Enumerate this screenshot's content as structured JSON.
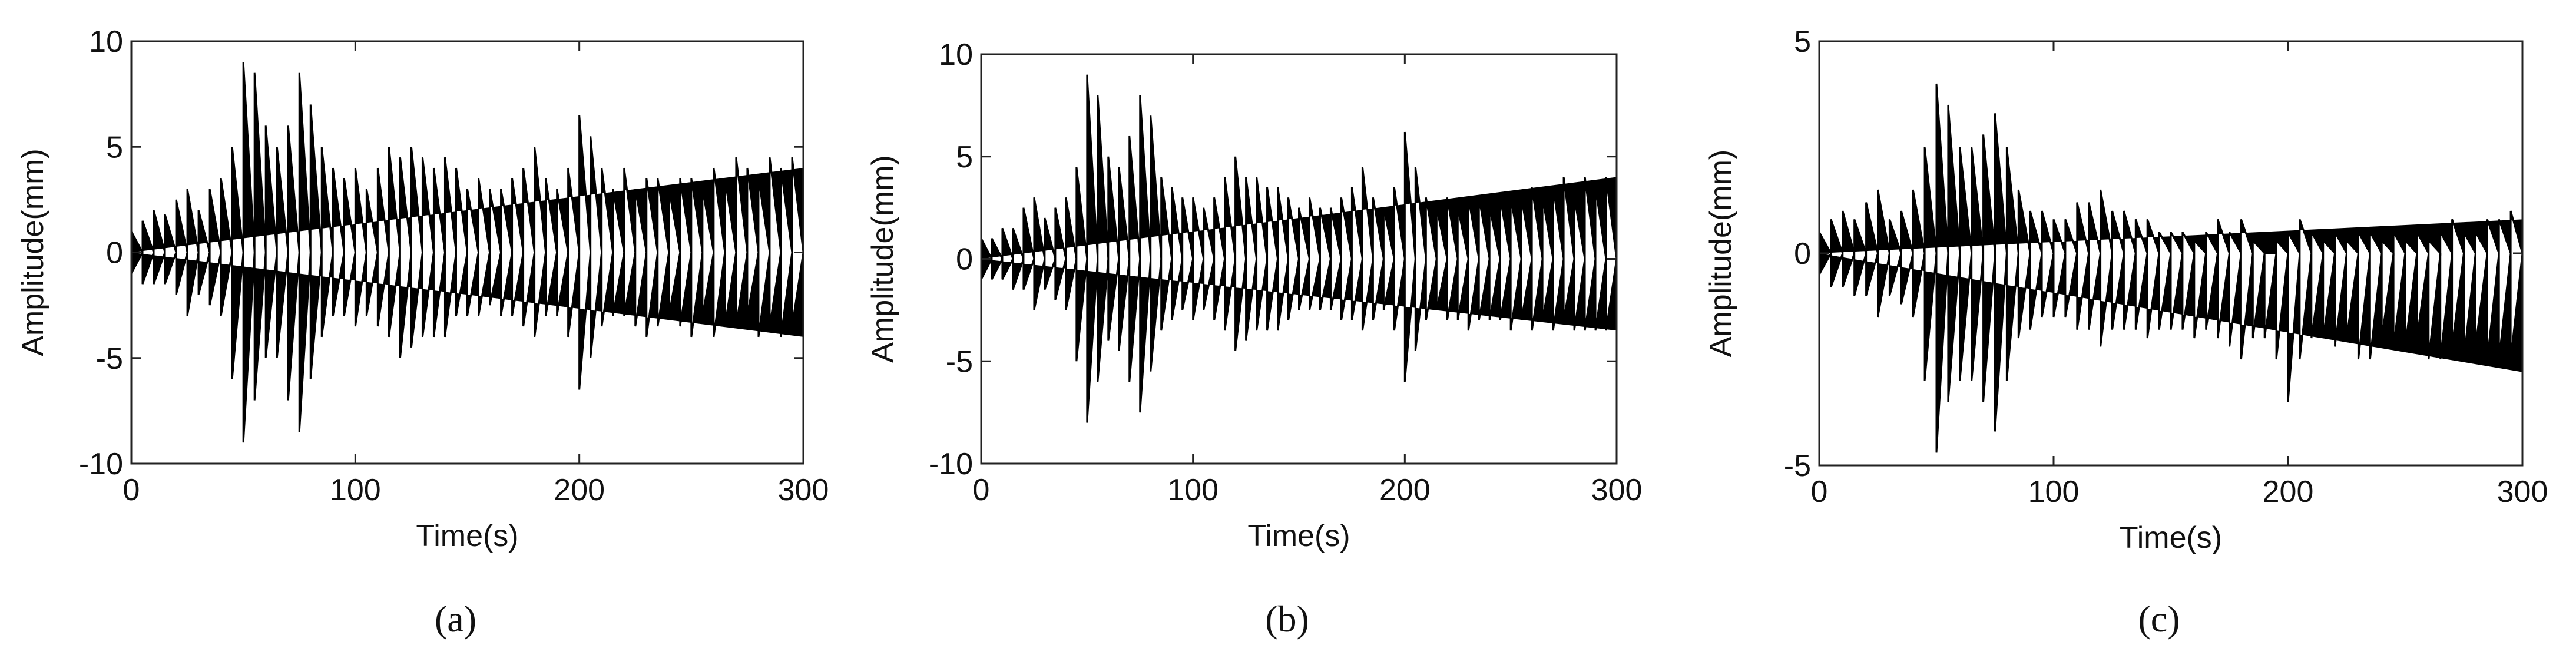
{
  "chart_data": [
    {
      "type": "area",
      "caption": "(a)",
      "xlabel": "Time(s)",
      "ylabel": "Amplitude(mm)",
      "x": [
        0,
        5,
        10,
        15,
        20,
        25,
        30,
        35,
        40,
        45,
        50,
        55,
        60,
        65,
        70,
        75,
        80,
        85,
        90,
        95,
        100,
        105,
        110,
        115,
        120,
        125,
        130,
        135,
        140,
        145,
        150,
        155,
        160,
        165,
        170,
        175,
        180,
        185,
        190,
        195,
        200,
        205,
        210,
        215,
        220,
        225,
        230,
        235,
        240,
        245,
        250,
        255,
        260,
        265,
        270,
        275,
        280,
        285,
        290,
        295,
        300
      ],
      "xlim": [
        0,
        300
      ],
      "xticks": [
        0,
        100,
        200,
        300
      ],
      "ylim": [
        -10,
        10
      ],
      "yticks": [
        -10,
        -5,
        0,
        5,
        10
      ],
      "series": [
        {
          "color": "#000000",
          "values": [
            1,
            1.5,
            2,
            1.8,
            2.5,
            3,
            2,
            3,
            3.5,
            5,
            9,
            8.5,
            6,
            5,
            6,
            8.5,
            7,
            5,
            4,
            3.5,
            4,
            3,
            4,
            5,
            4.5,
            5,
            4.5,
            4,
            4.5,
            4,
            3,
            3.5,
            3,
            3,
            3.5,
            4,
            5,
            3.5,
            3,
            4,
            6.5,
            5.5,
            4,
            3,
            4,
            3,
            3.5,
            3.5,
            3,
            3.5,
            3.5,
            3,
            4,
            3.5,
            4.5,
            4,
            3.5,
            4.5,
            4,
            4.5,
            4
          ]
        },
        {
          "color": "#000000",
          "values": [
            -1,
            -1.5,
            -1.5,
            -1.5,
            -2,
            -3,
            -2,
            -2.5,
            -3,
            -6,
            -9,
            -7,
            -5,
            -5,
            -7,
            -8.5,
            -6,
            -4,
            -3,
            -3,
            -3.5,
            -3,
            -3.5,
            -4,
            -5,
            -4.5,
            -4,
            -4,
            -4,
            -3,
            -3,
            -3,
            -2.5,
            -3,
            -3,
            -3.5,
            -4,
            -3,
            -3,
            -4,
            -6.5,
            -5,
            -3.5,
            -3,
            -3,
            -3.5,
            -4,
            -3.5,
            -3,
            -3.5,
            -4,
            -3,
            -4,
            -3.5,
            -3.5,
            -3,
            -4,
            -3.5,
            -4,
            -3.5,
            -4
          ]
        }
      ]
    },
    {
      "type": "area",
      "caption": "(b)",
      "xlabel": "Time(s)",
      "ylabel": "Amplitude(mm)",
      "x": [
        0,
        5,
        10,
        15,
        20,
        25,
        30,
        35,
        40,
        45,
        50,
        55,
        60,
        65,
        70,
        75,
        80,
        85,
        90,
        95,
        100,
        105,
        110,
        115,
        120,
        125,
        130,
        135,
        140,
        145,
        150,
        155,
        160,
        165,
        170,
        175,
        180,
        185,
        190,
        195,
        200,
        205,
        210,
        215,
        220,
        225,
        230,
        235,
        240,
        245,
        250,
        255,
        260,
        265,
        270,
        275,
        280,
        285,
        290,
        295,
        300
      ],
      "xlim": [
        0,
        300
      ],
      "xticks": [
        0,
        100,
        200,
        300
      ],
      "ylim": [
        -10,
        10
      ],
      "yticks": [
        -10,
        -5,
        0,
        5,
        10
      ],
      "series": [
        {
          "color": "#000000",
          "values": [
            1,
            1,
            1.5,
            1.5,
            2.5,
            3,
            2,
            2.5,
            3,
            4.5,
            9,
            8,
            5,
            4.5,
            6,
            8,
            7,
            4,
            3.5,
            3,
            3,
            2.5,
            3,
            4,
            5,
            4,
            4,
            3.5,
            3.5,
            3,
            2.5,
            3,
            2.5,
            2.5,
            3,
            3.5,
            4.5,
            3,
            2.5,
            3.5,
            6.2,
            4.5,
            3,
            2.5,
            3,
            2.5,
            3,
            3,
            2.5,
            3,
            3,
            3,
            3.5,
            3,
            3.5,
            4,
            3,
            4,
            3.5,
            4,
            4
          ]
        },
        {
          "color": "#000000",
          "values": [
            -1,
            -1,
            -1,
            -1.5,
            -1.5,
            -2.5,
            -1.5,
            -2,
            -2.5,
            -5,
            -8,
            -6,
            -4,
            -4.5,
            -6,
            -7.5,
            -5.5,
            -3.5,
            -3,
            -2.5,
            -3,
            -2.5,
            -3,
            -3.5,
            -4.5,
            -4,
            -3.5,
            -3.5,
            -3.5,
            -3,
            -2.5,
            -2.5,
            -2.5,
            -2.5,
            -3,
            -3,
            -3.5,
            -3,
            -2.5,
            -3.5,
            -6,
            -4.5,
            -3,
            -2.5,
            -3,
            -3,
            -3.5,
            -3,
            -3,
            -3,
            -3.5,
            -3,
            -3.5,
            -3,
            -3.5,
            -3,
            -3.5,
            -3.5,
            -3.5,
            -3.5,
            -3.5
          ]
        }
      ]
    },
    {
      "type": "area",
      "caption": "(c)",
      "xlabel": "Time(s)",
      "ylabel": "Amplitude(mm)",
      "x": [
        0,
        5,
        10,
        15,
        20,
        25,
        30,
        35,
        40,
        45,
        50,
        55,
        60,
        65,
        70,
        75,
        80,
        85,
        90,
        95,
        100,
        105,
        110,
        115,
        120,
        125,
        130,
        135,
        140,
        145,
        150,
        155,
        160,
        165,
        170,
        175,
        180,
        185,
        190,
        195,
        200,
        205,
        210,
        215,
        220,
        225,
        230,
        235,
        240,
        245,
        250,
        255,
        260,
        265,
        270,
        275,
        280,
        285,
        290,
        295,
        300
      ],
      "xlim": [
        0,
        300
      ],
      "xticks": [
        0,
        100,
        200,
        300
      ],
      "ylim": [
        -5,
        5
      ],
      "yticks": [
        -5,
        0,
        5
      ],
      "series": [
        {
          "color": "#000000",
          "values": [
            0.5,
            0.8,
            1,
            0.8,
            1.2,
            1.5,
            0.8,
            1,
            1.5,
            2.5,
            4,
            3.5,
            2.5,
            2.5,
            2.8,
            3.3,
            2.5,
            1.5,
            1,
            1,
            0.8,
            0.8,
            1.2,
            1.2,
            1.5,
            1,
            1,
            0.8,
            0.8,
            0.5,
            0.5,
            0.5,
            0.3,
            0.5,
            0.8,
            0.5,
            0.8,
            0.3,
            0,
            0.3,
            0.5,
            0.8,
            0.5,
            0.3,
            0.5,
            0.3,
            0.5,
            0.5,
            0.3,
            0.5,
            0.3,
            0.5,
            0.3,
            0.5,
            0.8,
            0.5,
            0.5,
            0.8,
            0.8,
            1,
            0.8
          ]
        },
        {
          "color": "#000000",
          "values": [
            -0.5,
            -0.8,
            -0.8,
            -1,
            -1,
            -1.5,
            -1,
            -1.2,
            -1.5,
            -3,
            -4.7,
            -3.5,
            -3,
            -3,
            -3.5,
            -4.2,
            -3,
            -2,
            -1.8,
            -1.5,
            -1.5,
            -1.5,
            -1.8,
            -1.8,
            -2.2,
            -1.8,
            -1.8,
            -1.8,
            -2,
            -1.8,
            -1.8,
            -1.8,
            -2,
            -1.8,
            -2,
            -2.2,
            -2.5,
            -2,
            -2,
            -2.5,
            -3.5,
            -2.5,
            -2,
            -2,
            -2.2,
            -2,
            -2.5,
            -2.5,
            -2,
            -2.2,
            -2.2,
            -2,
            -2.5,
            -2.5,
            -2.2,
            -2.5,
            -2.2,
            -2.5,
            -2.5,
            -2.5,
            -2.8
          ]
        }
      ]
    }
  ]
}
